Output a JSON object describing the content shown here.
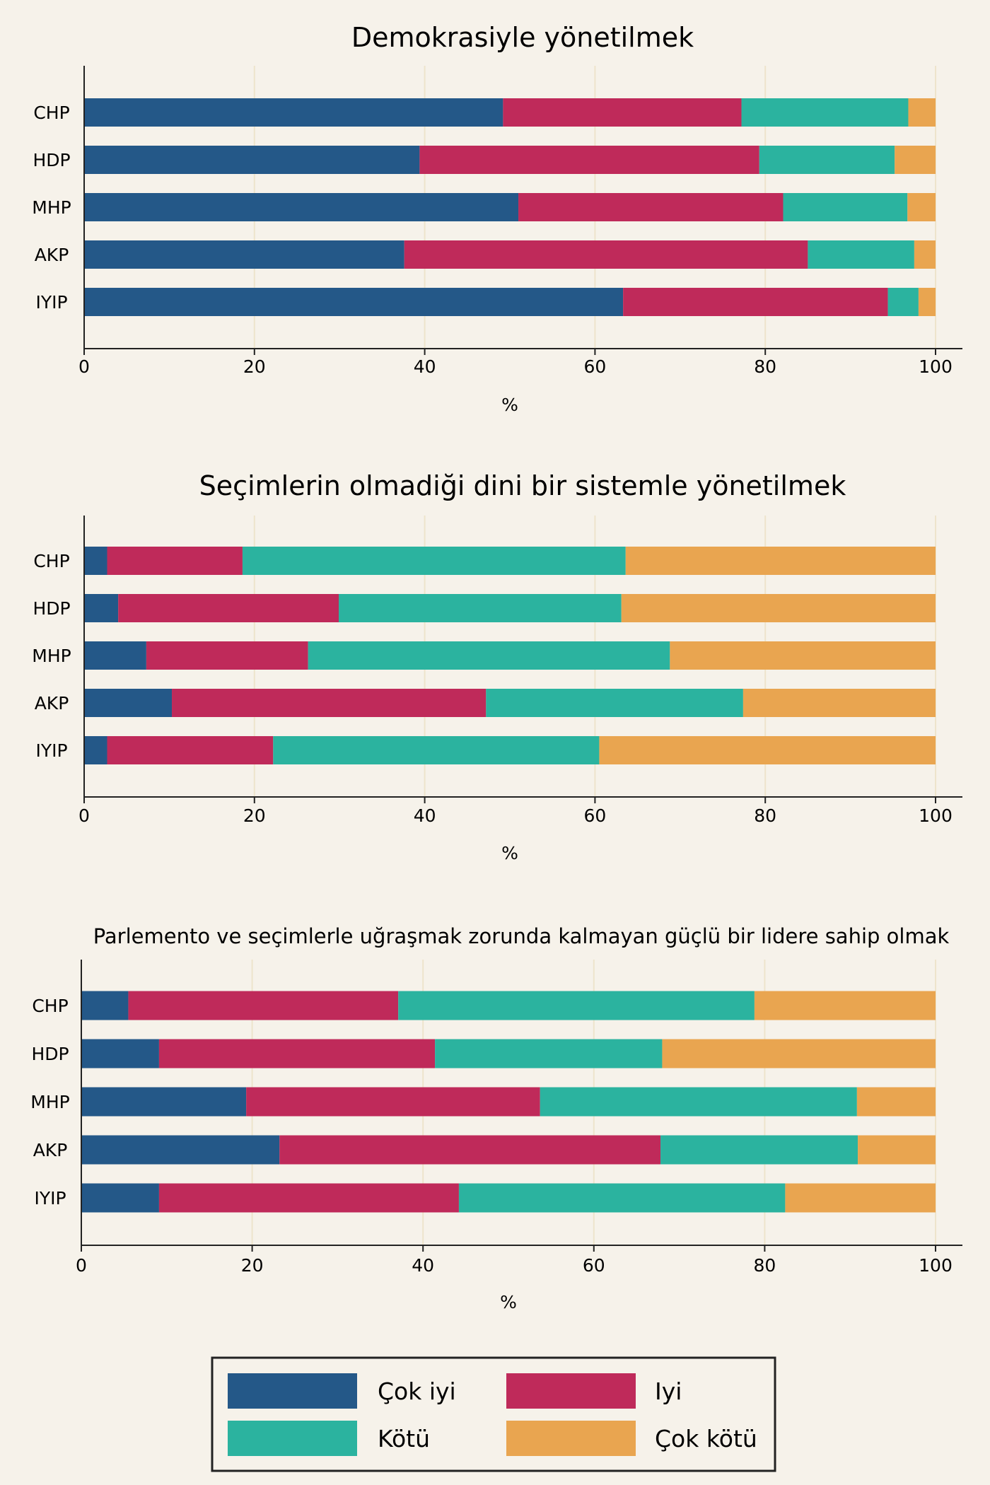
{
  "colors": {
    "background": "#f6f2ea",
    "grid": "#eee4cc",
    "axis": "#222222",
    "cok_iyi": "#245888",
    "iyi": "#bf2a5a",
    "kotu": "#2bb39f",
    "cok_kotu": "#e9a550"
  },
  "legend": {
    "position": "bottom-center",
    "items": [
      {
        "label": "Çok iyi",
        "color_key": "cok_iyi"
      },
      {
        "label": "Iyi",
        "color_key": "iyi"
      },
      {
        "label": "Kötü",
        "color_key": "kotu"
      },
      {
        "label": "Çok kötü",
        "color_key": "cok_kotu"
      }
    ]
  },
  "chart_data": [
    {
      "type": "bar",
      "orientation": "horizontal",
      "stacked": true,
      "title": "Demokrasiyle yönetilmek",
      "xlabel": "%",
      "xlim": [
        0,
        100
      ],
      "xticks": [
        "0",
        "20",
        "40",
        "60",
        "80",
        "100"
      ],
      "grid": true,
      "categories": [
        "CHP",
        "HDP",
        "MHP",
        "AKP",
        "IYIP"
      ],
      "series": [
        {
          "name": "Çok iyi",
          "values": [
            49.2,
            39.4,
            51.0,
            37.6,
            63.3
          ]
        },
        {
          "name": "Iyi",
          "values": [
            28.0,
            39.9,
            31.1,
            47.4,
            31.1
          ]
        },
        {
          "name": "Kötü",
          "values": [
            19.6,
            15.9,
            14.6,
            12.5,
            3.6
          ]
        },
        {
          "name": "Çok kötü",
          "values": [
            3.2,
            4.8,
            3.3,
            2.5,
            2.0
          ]
        }
      ]
    },
    {
      "type": "bar",
      "orientation": "horizontal",
      "stacked": true,
      "title": "Seçimlerin olmadiği dini bir sistemle yönetilmek",
      "xlabel": "%",
      "xlim": [
        0,
        100
      ],
      "xticks": [
        "0",
        "20",
        "40",
        "60",
        "80",
        "100"
      ],
      "grid": true,
      "categories": [
        "CHP",
        "HDP",
        "MHP",
        "AKP",
        "IYIP"
      ],
      "series": [
        {
          "name": "Çok iyi",
          "values": [
            2.7,
            4.0,
            7.3,
            10.3,
            2.7
          ]
        },
        {
          "name": "Iyi",
          "values": [
            15.9,
            25.9,
            19.0,
            36.9,
            19.5
          ]
        },
        {
          "name": "Kötü",
          "values": [
            45.0,
            33.2,
            42.5,
            30.2,
            38.3
          ]
        },
        {
          "name": "Çok kötü",
          "values": [
            36.4,
            36.9,
            31.2,
            22.6,
            39.5
          ]
        }
      ]
    },
    {
      "type": "bar",
      "orientation": "horizontal",
      "stacked": true,
      "title": "Parlemento ve seçimlerle uğraşmak zorunda kalmayan güçlü bir lidere sahip olmak",
      "xlabel": "%",
      "xlim": [
        0,
        100
      ],
      "xticks": [
        "0",
        "20",
        "40",
        "60",
        "80",
        "100"
      ],
      "grid": true,
      "categories": [
        "CHP",
        "HDP",
        "MHP",
        "AKP",
        "IYIP"
      ],
      "series": [
        {
          "name": "Çok iyi",
          "values": [
            5.5,
            9.1,
            19.3,
            23.2,
            9.1
          ]
        },
        {
          "name": "Iyi",
          "values": [
            31.6,
            32.3,
            34.4,
            44.6,
            35.1
          ]
        },
        {
          "name": "Kötü",
          "values": [
            41.7,
            26.6,
            37.1,
            23.1,
            38.2
          ]
        },
        {
          "name": "Çok kötü",
          "values": [
            21.2,
            32.0,
            9.2,
            9.1,
            17.6
          ]
        }
      ]
    }
  ]
}
